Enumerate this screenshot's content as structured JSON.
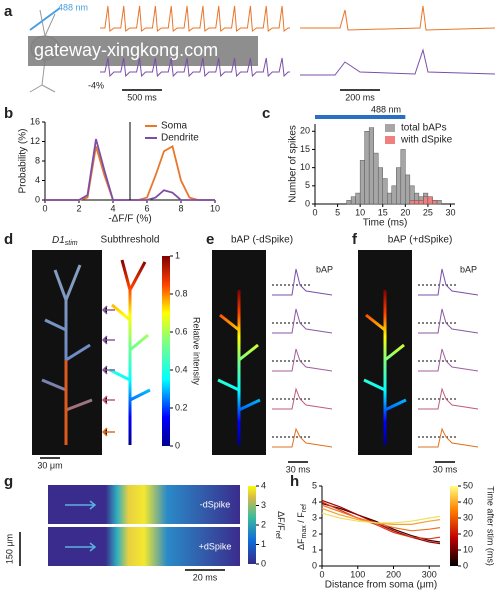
{
  "watermark": "gateway-xingkong.com",
  "panels": {
    "a": {
      "letter": "a",
      "wavelength": "488 nm",
      "scale_label": "-4%",
      "scalebar_left": "500 ms",
      "scalebar_right": "200 ms"
    },
    "b": {
      "letter": "b"
    },
    "c": {
      "letter": "c",
      "stim_label": "488 nm",
      "stim_range": [
        0,
        20
      ]
    },
    "d": {
      "letter": "d",
      "title": "D1",
      "title_sub": "stim",
      "title2": "Subthreshold",
      "scalebar": "30 μm",
      "colorbar": {
        "label": "Relative intensity",
        "ticks": [
          0,
          0.2,
          0.4,
          0.6,
          0.8,
          1
        ]
      }
    },
    "e": {
      "letter": "e",
      "title": "bAP (-dSpike)",
      "trace_label": "bAP",
      "scalebar": "30 ms"
    },
    "f": {
      "letter": "f",
      "title": "bAP (+dSpike)",
      "trace_label": "bAP",
      "scalebar": "30 ms"
    },
    "g": {
      "letter": "g",
      "row1": "-dSpike",
      "row2": "+dSpike",
      "scalebar_y": "150 μm",
      "scalebar_x": "20 ms",
      "colorbar": {
        "label": "ΔF/F",
        "label_sub": "ref",
        "ticks": [
          0,
          1,
          2,
          3,
          4
        ]
      }
    },
    "h": {
      "letter": "h",
      "ylabel": "ΔF",
      "ylabel_sub": "max",
      "ylabel2": " / F",
      "ylabel2_sub": "ref",
      "colorbar": {
        "label": "Time after stim (ms)",
        "ticks": [
          0,
          10,
          20,
          30,
          40,
          50
        ]
      }
    }
  },
  "chart_data": [
    {
      "type": "line",
      "xlabel": "-ΔF/F (%)",
      "ylabel": "Probability (%)",
      "x": [
        0,
        0.5,
        1,
        1.5,
        2,
        2.5,
        3,
        3.5,
        4,
        4.5,
        5,
        5.5,
        6,
        6.5,
        7,
        7.5,
        8,
        8.5,
        9,
        9.5,
        10
      ],
      "series": [
        {
          "name": "Soma",
          "color": "#e8762b",
          "values": [
            0,
            0,
            0,
            0,
            0,
            0.5,
            11,
            5,
            0,
            0,
            0,
            0,
            0.5,
            5,
            10,
            11,
            4,
            0.5,
            0,
            0,
            0
          ]
        },
        {
          "name": "Dendrite",
          "color": "#7b4fa8",
          "values": [
            0,
            0,
            0,
            0,
            0,
            1,
            12.5,
            6,
            0,
            0,
            0,
            0,
            0,
            0.5,
            2,
            1.5,
            0,
            0,
            0,
            0,
            0
          ]
        }
      ],
      "xlim": [
        0,
        10
      ],
      "ylim": [
        0,
        16
      ],
      "xticks": [
        0,
        2,
        4,
        6,
        8,
        10
      ],
      "yticks": [
        0,
        4,
        8,
        12,
        16
      ],
      "legend": "upper right"
    },
    {
      "type": "histogram",
      "xlabel": "Time (ms)",
      "ylabel": "Number of spikes",
      "bins": [
        0,
        1,
        2,
        3,
        4,
        5,
        6,
        7,
        8,
        9,
        10,
        11,
        12,
        13,
        14,
        15,
        16,
        17,
        18,
        19,
        20,
        21,
        22,
        23,
        24,
        25,
        26,
        27,
        28,
        29,
        30
      ],
      "series": [
        {
          "name": "total bAPs",
          "color": "#a6a6a6",
          "values": [
            0,
            0,
            0,
            0,
            0,
            0,
            0,
            1,
            2,
            3,
            12,
            20,
            21,
            14,
            10,
            7,
            3,
            5,
            10,
            15,
            8,
            5,
            3,
            2,
            3,
            2,
            1,
            1,
            0,
            0
          ]
        },
        {
          "name": "with dSpike",
          "color": "#f08080",
          "values": [
            0,
            0,
            0,
            0,
            0,
            0,
            0,
            0,
            0,
            0,
            0,
            0,
            0,
            0,
            0,
            0,
            0,
            0,
            0,
            0,
            0,
            1,
            1,
            1,
            2,
            2,
            1,
            0,
            0,
            0
          ]
        }
      ],
      "xlim": [
        0,
        31
      ],
      "ylim": [
        0,
        22
      ],
      "xticks": [
        0,
        5,
        10,
        15,
        20,
        25,
        30
      ],
      "yticks": [
        0,
        5,
        10,
        15,
        20
      ],
      "legend": "upper right"
    },
    {
      "type": "line",
      "xlabel": "Distance from soma (μm)",
      "x": [
        0,
        50,
        100,
        150,
        200,
        250,
        300,
        330
      ],
      "series": [
        {
          "color": "#3a0000",
          "values": [
            3.9,
            3.6,
            3.2,
            2.8,
            2.3,
            1.9,
            1.6,
            1.5
          ]
        },
        {
          "color": "#a00000",
          "values": [
            4.1,
            3.7,
            3.2,
            2.7,
            2.2,
            1.8,
            1.5,
            1.4
          ]
        },
        {
          "color": "#e03010",
          "values": [
            4.0,
            3.5,
            3.0,
            2.6,
            2.1,
            1.8,
            1.7,
            1.8
          ]
        },
        {
          "color": "#f07020",
          "values": [
            3.8,
            3.4,
            3.0,
            2.7,
            2.4,
            2.2,
            2.3,
            2.4
          ]
        },
        {
          "color": "#f5a030",
          "values": [
            3.6,
            3.2,
            2.9,
            2.7,
            2.6,
            2.6,
            2.8,
            2.9
          ]
        },
        {
          "color": "#f0e060",
          "values": [
            3.3,
            3.0,
            2.8,
            2.7,
            2.7,
            2.8,
            3.0,
            3.1
          ]
        }
      ],
      "xlim": [
        0,
        330
      ],
      "ylim": [
        0,
        5
      ],
      "xticks": [
        0,
        100,
        200,
        300
      ],
      "yticks": [
        0,
        1,
        2,
        3,
        4,
        5
      ]
    }
  ]
}
